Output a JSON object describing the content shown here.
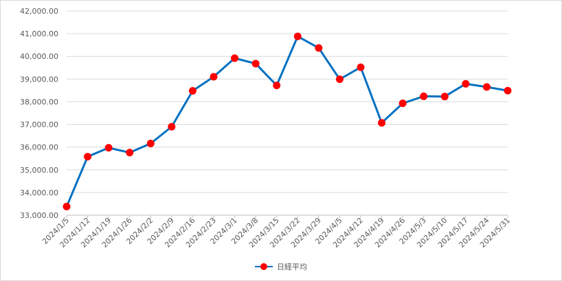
{
  "chart_data": {
    "type": "line",
    "title": "",
    "xlabel": "",
    "ylabel": "",
    "categories": [
      "2024/1/5",
      "2024/1/12",
      "2024/1/19",
      "2024/1/26",
      "2024/2/2",
      "2024/2/9",
      "2024/2/16",
      "2024/2/23",
      "2024/3/1",
      "2024/3/8",
      "2024/3/15",
      "2024/3/22",
      "2024/3/29",
      "2024/4/5",
      "2024/4/12",
      "2024/4/19",
      "2024/4/26",
      "2024/5/3",
      "2024/5/10",
      "2024/5/17",
      "2024/5/24",
      "2024/5/31"
    ],
    "series": [
      {
        "name": "日経平均",
        "values": [
          33380,
          35580,
          35970,
          35760,
          36160,
          36900,
          38480,
          39100,
          39920,
          39680,
          38720,
          40880,
          40370,
          38990,
          39520,
          37070,
          37930,
          38240,
          38230,
          38790,
          38650,
          38490
        ]
      }
    ],
    "ylim": [
      33000,
      42000
    ],
    "yticks": [
      "33,000.00",
      "34,000.00",
      "35,000.00",
      "36,000.00",
      "37,000.00",
      "38,000.00",
      "39,000.00",
      "40,000.00",
      "41,000.00",
      "42,000.00"
    ],
    "grid": true,
    "legend_position": "bottom",
    "line_color": "#0070C0",
    "marker_color": "#ff0000"
  }
}
